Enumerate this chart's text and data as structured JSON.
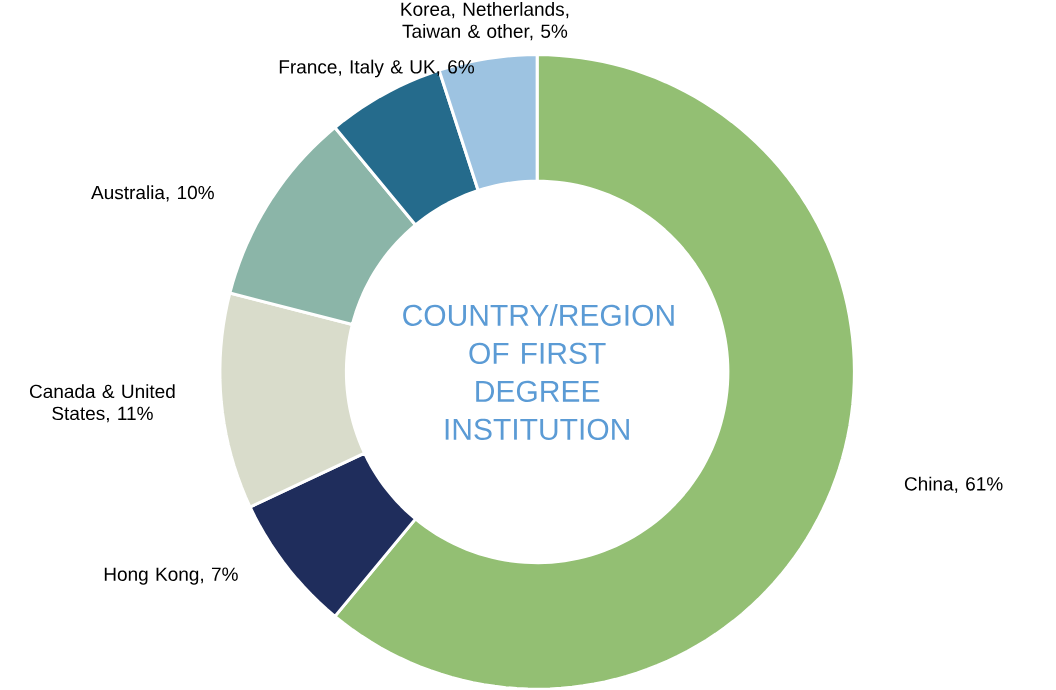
{
  "chart_data": {
    "type": "donut",
    "title": "COUNTRY/REGION OF FIRST DEGREE INSTITUTION",
    "categories": [
      "China, 61%",
      "Hong Kong, 7%",
      "Canada & United States, 11%",
      "Australia, 10%",
      "France, Italy & UK, 6%",
      "Korea, Netherlands, Taiwan & other, 5%"
    ],
    "values": [
      61,
      7,
      11,
      10,
      6,
      5
    ],
    "colors": [
      "#93bf73",
      "#1f2d5c",
      "#d9dccb",
      "#8bb5a8",
      "#256b8c",
      "#9dc3e1"
    ]
  }
}
